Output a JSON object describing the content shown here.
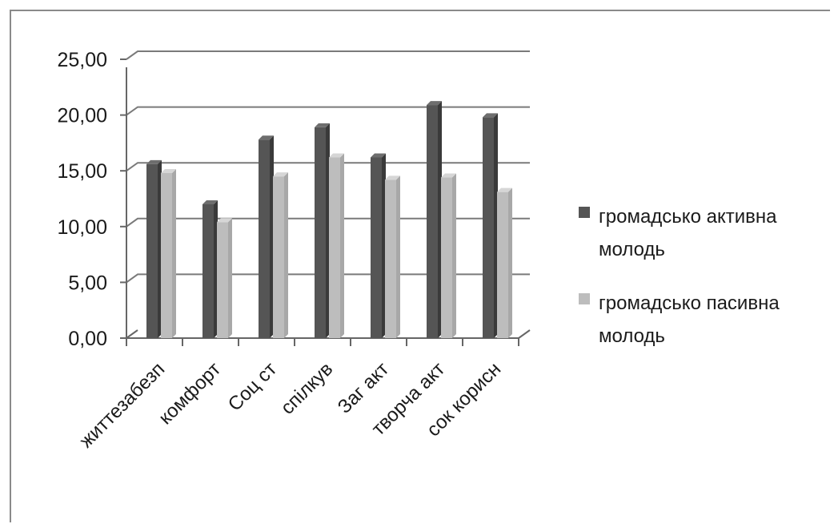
{
  "chart_data": {
    "type": "bar",
    "title": "",
    "xlabel": "",
    "ylabel": "",
    "categories": [
      "життезабезп",
      "комфорт",
      "Соц ст",
      "спілкув",
      "Заг акт",
      "творча акт",
      "сок корисн"
    ],
    "series": [
      {
        "name": "громадсько активна молодь",
        "legend_lines": [
          "громадсько активна",
          "молодь"
        ],
        "color": "#555555",
        "values": [
          15.6,
          12.0,
          17.8,
          18.9,
          16.2,
          20.9,
          19.8
        ]
      },
      {
        "name": "громадсько пасивна молодь",
        "legend_lines": [
          "громадсько пасивна",
          "молодь"
        ],
        "color": "#bdbdbd",
        "values": [
          14.8,
          10.4,
          14.5,
          16.2,
          14.2,
          14.4,
          13.1
        ]
      }
    ],
    "ylim": [
      0,
      25
    ],
    "yticks": [
      "0,00",
      "5,00",
      "10,00",
      "15,00",
      "20,00",
      "25,00"
    ],
    "grid": true,
    "legend_position": "right"
  }
}
